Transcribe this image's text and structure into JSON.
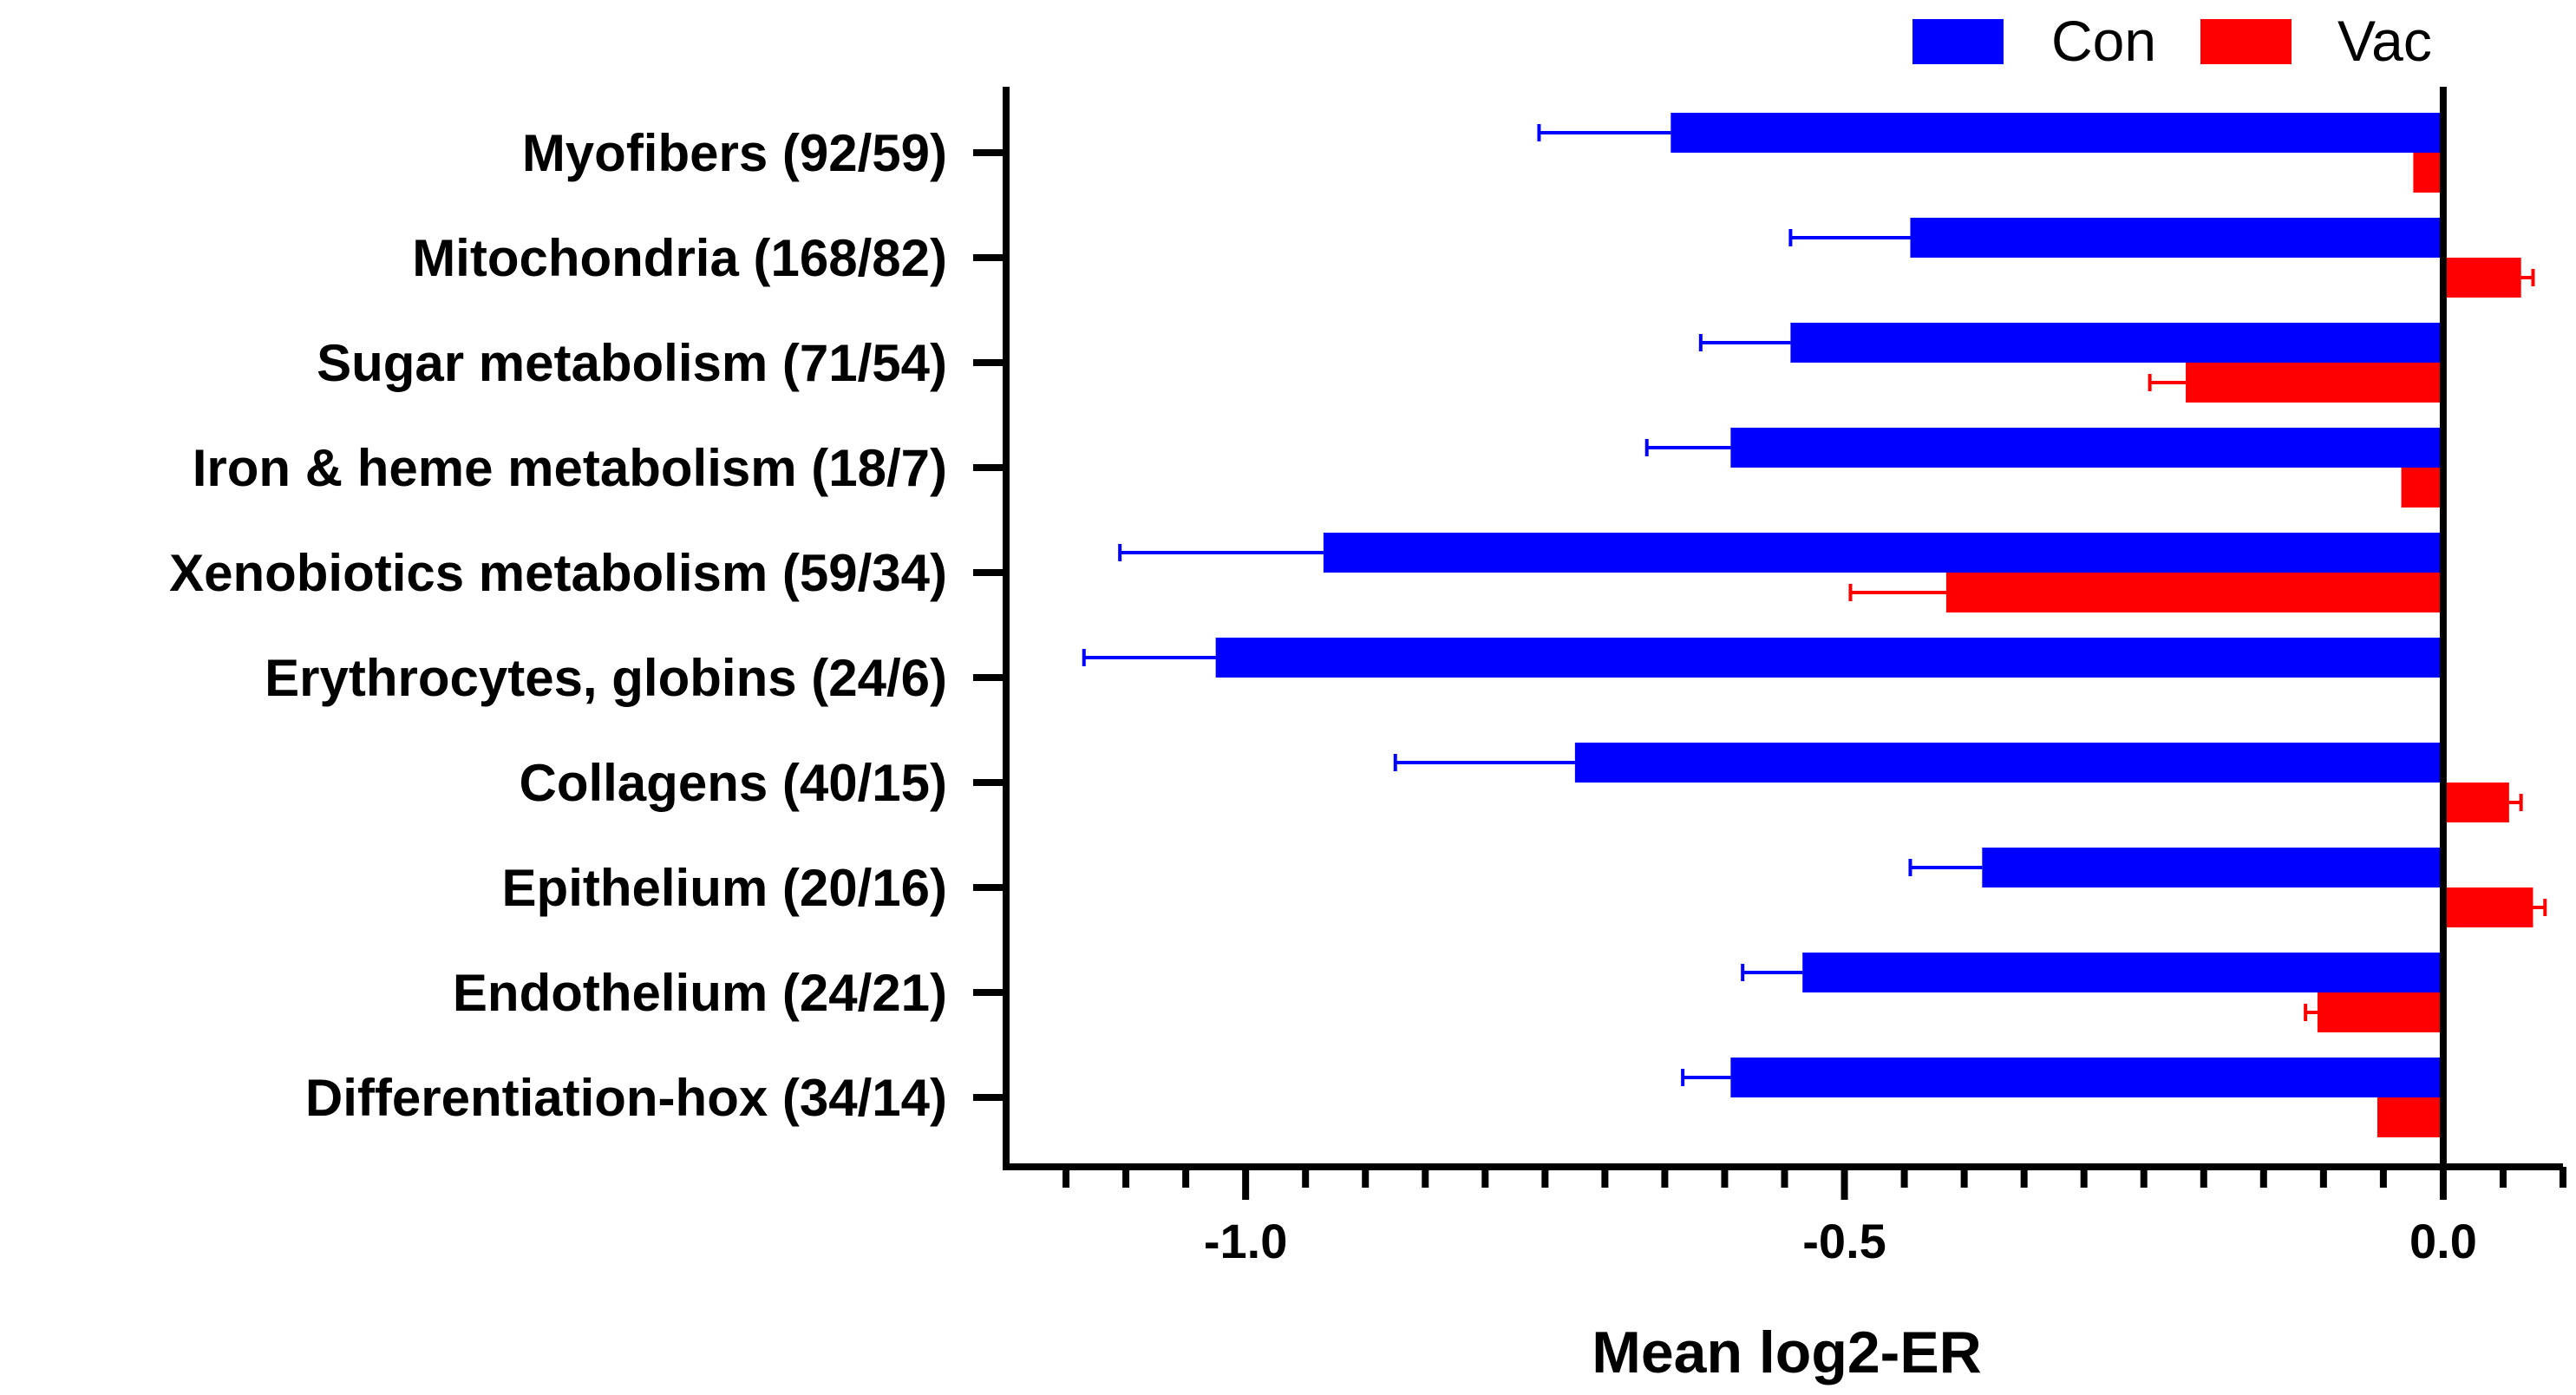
{
  "chart_data": {
    "type": "bar",
    "orientation": "horizontal",
    "title": "",
    "xlabel": "Mean log2-ER",
    "ylabel": "",
    "xlim": [
      -1.2,
      0.1
    ],
    "x_ticks": [
      -1.0,
      -0.5,
      0.0
    ],
    "x_tick_labels": [
      "-1.0",
      "-0.5",
      "0.0"
    ],
    "grid": false,
    "legend_position": "top-right",
    "categories": [
      "Myofibers (92/59)",
      "Mitochondria (168/82)",
      "Sugar metabolism (71/54)",
      "Iron & heme metabolism (18/7)",
      "Xenobiotics metabolism (59/34)",
      "Erythrocytes, globins (24/6)",
      "Collagens (40/15)",
      "Epithelium (20/16)",
      "Endothelium (24/21)",
      "Differentiation-hox (34/14)"
    ],
    "series": [
      {
        "name": "Con",
        "color": "#0000ff",
        "values": [
          -0.645,
          -0.445,
          -0.545,
          -0.595,
          -0.935,
          -1.025,
          -0.725,
          -0.385,
          -0.535,
          -0.595
        ],
        "errors": [
          0.11,
          0.1,
          0.075,
          0.07,
          0.17,
          0.11,
          0.15,
          0.06,
          0.05,
          0.04
        ]
      },
      {
        "name": "Vac",
        "color": "#ff0000",
        "values": [
          -0.025,
          0.065,
          -0.215,
          -0.035,
          -0.415,
          0.0,
          0.055,
          0.075,
          -0.105,
          -0.055
        ],
        "errors": [
          0.0,
          0.01,
          0.03,
          0.0,
          0.08,
          0.0,
          0.01,
          0.01,
          0.01,
          0.0
        ]
      }
    ]
  }
}
